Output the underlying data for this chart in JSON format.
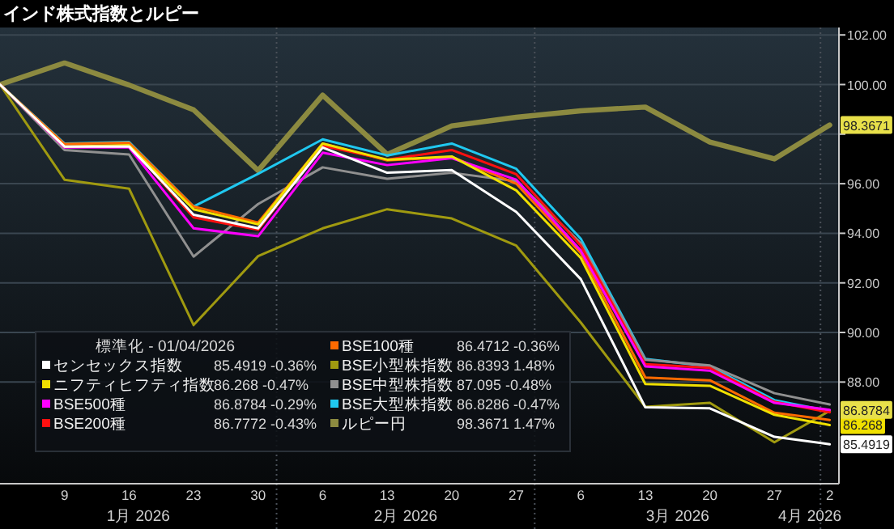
{
  "chart_data": {
    "type": "line",
    "title": "インド株式指数とルピー",
    "legend_title": "標準化 - 01/04/2026",
    "x": [
      "2026-01-02",
      "2026-01-09",
      "2026-01-16",
      "2026-01-23",
      "2026-01-30",
      "2026-02-06",
      "2026-02-13",
      "2026-02-20",
      "2026-02-27",
      "2026-03-06",
      "2026-03-13",
      "2026-03-20",
      "2026-03-27",
      "2026-04-02"
    ],
    "xlim": [
      "2026-01-02",
      "2026-04-03"
    ],
    "xticks": [
      {
        "value": "2026-01-09",
        "label": "9"
      },
      {
        "value": "2026-01-16",
        "label": "16"
      },
      {
        "value": "2026-01-23",
        "label": "23"
      },
      {
        "value": "2026-01-30",
        "label": "30"
      },
      {
        "value": "2026-02-06",
        "label": "6"
      },
      {
        "value": "2026-02-13",
        "label": "13"
      },
      {
        "value": "2026-02-20",
        "label": "20"
      },
      {
        "value": "2026-02-27",
        "label": "27"
      },
      {
        "value": "2026-03-06",
        "label": "6"
      },
      {
        "value": "2026-03-13",
        "label": "13"
      },
      {
        "value": "2026-03-20",
        "label": "20"
      },
      {
        "value": "2026-03-27",
        "label": "27"
      },
      {
        "value": "2026-04-02",
        "label": "2"
      }
    ],
    "ylim": [
      83.9,
      102.3
    ],
    "yticks": [
      {
        "value": 88,
        "label": "88.00"
      },
      {
        "value": 90,
        "label": "90.00"
      },
      {
        "value": 92,
        "label": "92.00"
      },
      {
        "value": 94,
        "label": "94.00"
      },
      {
        "value": 96,
        "label": "96.00"
      },
      {
        "value": 98,
        "label": null
      },
      {
        "value": 100,
        "label": "100.00"
      },
      {
        "value": 102,
        "label": "102.00"
      }
    ],
    "grid": "y",
    "legend": "bottom left",
    "marker": "none",
    "line_style": "solid",
    "annotations": [
      "85.4919 -0.36%",
      "86.268 -0.47%",
      "86.8784 -0.29%",
      "86.7772 -0.43%",
      "86.4712 -0.36%",
      "86.8393 1.48%",
      "87.095 -0.48%",
      "86.8286 -0.47%",
      "98.3671 1.47%",
      "1月 2026",
      "2月 2026",
      "3月 2026",
      "4月 2026"
    ],
    "series": [
      {
        "name": "センセックス指数",
        "color": "#ffffff",
        "values": [
          100,
          97.5,
          97.5,
          94.75,
          94.2,
          97.46,
          96.44,
          96.55,
          94.86,
          92.15,
          86.98,
          86.94,
          85.79,
          85.4919
        ],
        "value_labels": [
          null,
          null,
          null,
          null,
          null,
          null,
          null,
          null,
          null,
          null,
          null,
          null,
          null,
          "85.4919"
        ]
      },
      {
        "name": "ニフティヒフティ指数",
        "color": "#f0e000",
        "values": [
          100,
          97.5,
          97.55,
          94.97,
          94.36,
          97.62,
          96.97,
          97.1,
          95.73,
          93.0,
          87.92,
          87.85,
          86.68,
          86.268
        ],
        "value_labels": [
          null,
          null,
          null,
          null,
          null,
          null,
          null,
          null,
          null,
          null,
          null,
          null,
          null,
          "86.268"
        ]
      },
      {
        "name": "BSE500種",
        "color": "#ff00ff",
        "values": [
          100,
          97.46,
          97.46,
          94.2,
          93.88,
          97.25,
          96.75,
          97.03,
          96.16,
          93.3,
          88.63,
          88.46,
          87.16,
          86.8784
        ],
        "value_labels": [
          null,
          null,
          null,
          null,
          null,
          null,
          null,
          null,
          null,
          null,
          null,
          null,
          null,
          "86.8784"
        ]
      },
      {
        "name": "BSE200種",
        "color": "#ff1010",
        "values": [
          100,
          97.5,
          97.55,
          94.64,
          94.14,
          97.53,
          96.97,
          97.36,
          96.38,
          93.5,
          88.72,
          88.57,
          87.2,
          86.7772
        ]
      },
      {
        "name": "BSE100種",
        "color": "#ff6a00",
        "values": [
          100,
          97.6,
          97.65,
          95.08,
          94.43,
          97.62,
          96.94,
          97.08,
          96.0,
          93.2,
          88.18,
          88.07,
          86.76,
          86.4712
        ]
      },
      {
        "name": "BSE小型株指数",
        "color": "#a09a10",
        "values": [
          100,
          96.16,
          95.8,
          90.3,
          93.08,
          94.2,
          94.97,
          94.6,
          93.5,
          90.4,
          87.0,
          87.16,
          85.57,
          86.8393
        ]
      },
      {
        "name": "BSE中型株指数",
        "color": "#909090",
        "values": [
          100,
          97.36,
          97.18,
          93.06,
          95.18,
          96.66,
          96.2,
          96.44,
          96.1,
          93.6,
          88.9,
          88.67,
          87.55,
          87.095
        ]
      },
      {
        "name": "BSE大型株指数",
        "color": "#20c8f0",
        "values": [
          100,
          97.62,
          97.68,
          95.08,
          96.4,
          97.79,
          97.14,
          97.62,
          96.6,
          93.78,
          88.93,
          88.63,
          87.27,
          86.8286
        ]
      },
      {
        "name": "ルピー円",
        "color": "#8c8a40",
        "values": [
          100,
          100.87,
          99.98,
          98.98,
          96.53,
          99.57,
          97.18,
          98.33,
          98.68,
          98.94,
          99.09,
          97.68,
          97.0,
          98.3671
        ],
        "value_labels": [
          null,
          null,
          null,
          null,
          null,
          null,
          null,
          null,
          null,
          null,
          null,
          null,
          null,
          "98.3671"
        ]
      }
    ]
  }
}
